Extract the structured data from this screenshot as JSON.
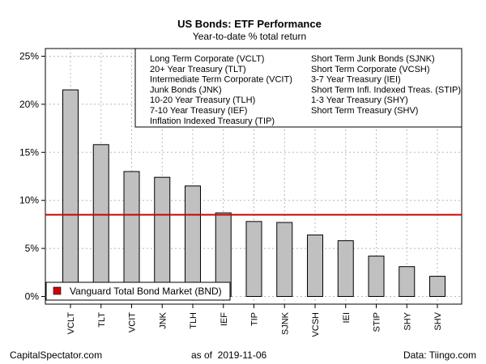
{
  "chart_data": {
    "type": "bar",
    "title": "US Bonds: ETF Performance",
    "subtitle": "Year-to-date % total return",
    "xlabel": "",
    "ylabel": "",
    "categories": [
      "VCLT",
      "TLT",
      "VCIT",
      "JNK",
      "TLH",
      "IEF",
      "TIP",
      "SJNK",
      "VCSH",
      "IEI",
      "STIP",
      "SHY",
      "SHV"
    ],
    "values": [
      21.5,
      15.8,
      13.0,
      12.4,
      11.5,
      8.7,
      7.8,
      7.7,
      6.4,
      5.8,
      4.2,
      3.1,
      2.1
    ],
    "ylim": [
      -0.8,
      25.8
    ],
    "yticks": [
      0,
      5,
      10,
      15,
      20,
      25
    ],
    "ytick_labels": [
      "0%",
      "5%",
      "10%",
      "15%",
      "20%",
      "25%"
    ],
    "grid": true,
    "bar_color": "#c0c0c0",
    "reference_line": {
      "label": "Vanguard Total Bond Market (BND)",
      "value": 8.5,
      "color": "#cc0000"
    },
    "legend": {
      "placement": "top-right",
      "columns": [
        [
          "Long Term Corporate (VCLT)",
          "20+ Year Treasury (TLT)",
          "Intermediate Term Corporate (VCIT)",
          "Junk Bonds (JNK)",
          "10-20 Year Treasury (TLH)",
          "7-10 Year Treasury (IEF)",
          "Inflation Indexed Treasury (TIP)"
        ],
        [
          "Short Term Junk Bonds (SJNK)",
          "Short Term Corporate (VCSH)",
          "3-7 Year Treasury (IEI)",
          "Short Term Infl. Indexed Treas. (STIP)",
          "1-3 Year Treasury (SHY)",
          "Short Term Treasury (SHV)"
        ]
      ]
    }
  },
  "footer": {
    "source_left": "CapitalSpectator.com",
    "as_of": "as of  2019-11-06",
    "data_source": "Data: Tiingo.com"
  }
}
